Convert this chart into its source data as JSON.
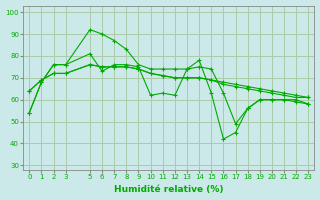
{
  "background_color": "#cce9e9",
  "grid_color": "#aaccaa",
  "line_color": "#00aa00",
  "xlabel": "Humidité relative (%)",
  "xlabel_color": "#00aa00",
  "ylim": [
    28,
    103
  ],
  "xlim": [
    -0.5,
    23.5
  ],
  "yticks": [
    30,
    40,
    50,
    60,
    70,
    80,
    90,
    100
  ],
  "xtick_positions": [
    0,
    1,
    2,
    3,
    5,
    6,
    7,
    8,
    9,
    10,
    11,
    12,
    13,
    14,
    15,
    16,
    17,
    18,
    19,
    20,
    21,
    22,
    23
  ],
  "xtick_labels": [
    "0",
    "1",
    "2",
    "3",
    "5",
    "6",
    "7",
    "8",
    "9",
    "10",
    "11",
    "12",
    "13",
    "14",
    "15",
    "16",
    "17",
    "18",
    "19",
    "20",
    "21",
    "22",
    "23"
  ],
  "series": [
    {
      "x": [
        0,
        1,
        2,
        3,
        5,
        6,
        7,
        8,
        9,
        10,
        11,
        12,
        13,
        14,
        15,
        16,
        17,
        18,
        19,
        20,
        21,
        22,
        23
      ],
      "y": [
        54,
        68,
        76,
        76,
        81,
        73,
        76,
        76,
        75,
        62,
        63,
        62,
        74,
        78,
        63,
        42,
        45,
        56,
        60,
        60,
        60,
        60,
        58
      ]
    },
    {
      "x": [
        0,
        1,
        2,
        3,
        5,
        6,
        7,
        8,
        9,
        10,
        11,
        12,
        13,
        14,
        15,
        16,
        17,
        18,
        19,
        20,
        21,
        22,
        23
      ],
      "y": [
        54,
        68,
        76,
        76,
        92,
        90,
        87,
        83,
        76,
        74,
        74,
        74,
        74,
        75,
        74,
        63,
        49,
        56,
        60,
        60,
        60,
        59,
        58
      ]
    },
    {
      "x": [
        0,
        1,
        2,
        3,
        5,
        6,
        7,
        8,
        9,
        10,
        11,
        12,
        13,
        14,
        15,
        16,
        17,
        18,
        19,
        20,
        21,
        22,
        23
      ],
      "y": [
        64,
        69,
        72,
        72,
        76,
        75,
        75,
        75,
        74,
        72,
        71,
        70,
        70,
        70,
        69,
        67,
        66,
        65,
        64,
        63,
        62,
        61,
        61
      ]
    },
    {
      "x": [
        0,
        1,
        2,
        3,
        5,
        6,
        7,
        8,
        9,
        10,
        11,
        12,
        13,
        14,
        15,
        16,
        17,
        18,
        19,
        20,
        21,
        22,
        23
      ],
      "y": [
        64,
        69,
        72,
        72,
        76,
        75,
        75,
        75,
        74,
        72,
        71,
        70,
        70,
        70,
        69,
        68,
        67,
        66,
        65,
        64,
        63,
        62,
        61
      ]
    }
  ]
}
